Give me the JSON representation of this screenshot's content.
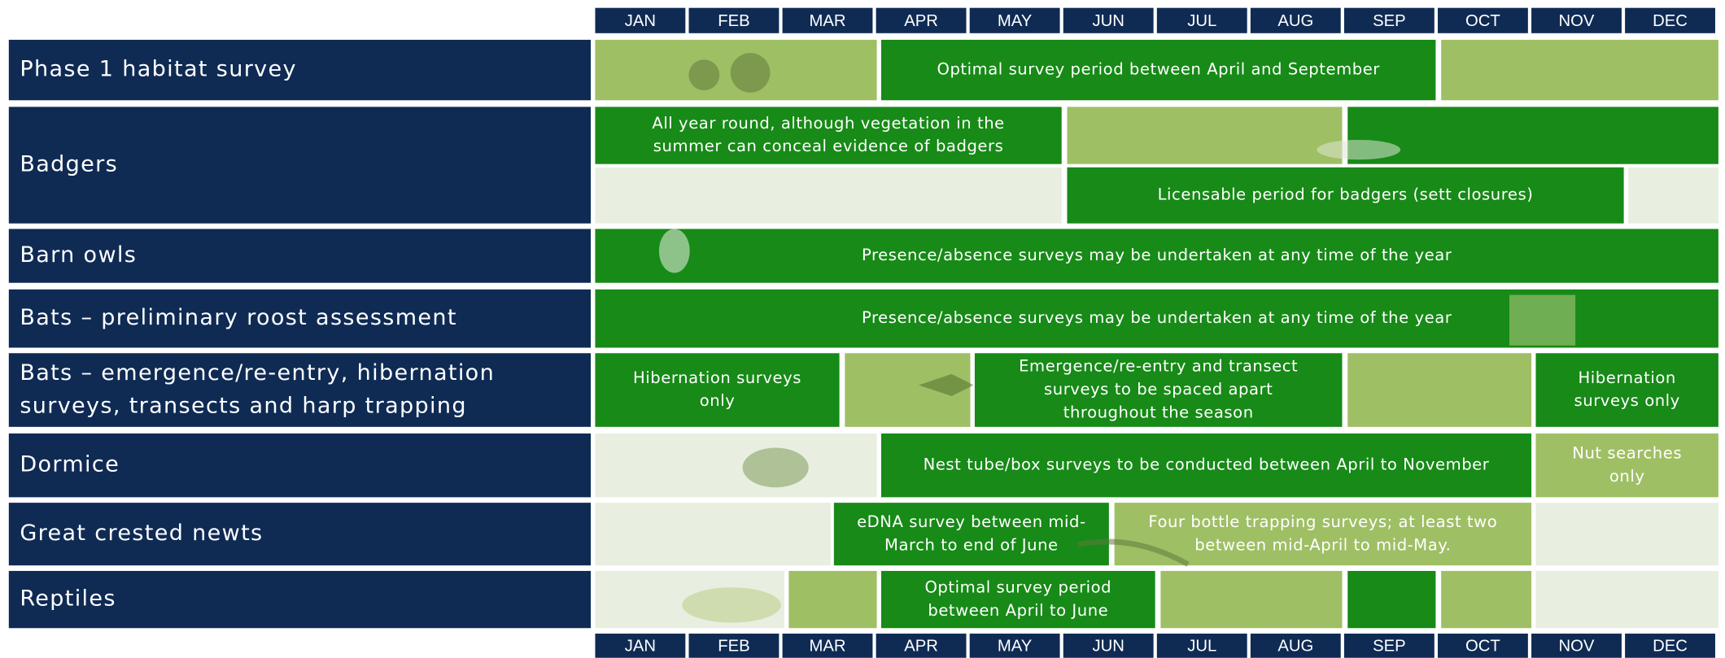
{
  "months": [
    "JAN",
    "FEB",
    "MAR",
    "APR",
    "MAY",
    "JUN",
    "JUL",
    "AUG",
    "SEP",
    "OCT",
    "NOV",
    "DEC"
  ],
  "rows": [
    {
      "label": [
        "Phase 1 habitat survey"
      ],
      "notes": [
        [
          "Optimal survey period between April and September"
        ]
      ]
    },
    {
      "label": [
        "Badgers"
      ],
      "notes": [
        [
          "All year round, although vegetation in the",
          "summer can conceal evidence of badgers"
        ],
        [
          "Licensable period for badgers (sett closures)"
        ]
      ]
    },
    {
      "label": [
        "Barn owls"
      ],
      "notes": [
        [
          "Presence/absence surveys may be undertaken at any time of the year"
        ]
      ]
    },
    {
      "label": [
        "Bats – preliminary roost assessment"
      ],
      "notes": [
        [
          "Presence/absence surveys may be undertaken at any time of the year"
        ]
      ]
    },
    {
      "label": [
        "Bats – emergence/re-entry, hibernation",
        "surveys, transects and harp trapping"
      ],
      "notes": [
        [
          "Hibernation surveys",
          "only"
        ],
        [
          "Emergence/re-entry and transect",
          "surveys to be spaced apart",
          "throughout the season"
        ],
        [
          "Hibernation",
          "surveys only"
        ]
      ]
    },
    {
      "label": [
        "Dormice"
      ],
      "notes": [
        [
          "Nest tube/box surveys to be conducted between April to November"
        ],
        [
          "Nut searches",
          "only"
        ]
      ]
    },
    {
      "label": [
        "Great crested newts"
      ],
      "notes": [
        [
          "eDNA survey between mid-",
          "March to end of June"
        ],
        [
          "Four bottle trapping surveys; at least two",
          "between mid-April to mid-May."
        ]
      ]
    },
    {
      "label": [
        "Reptiles"
      ],
      "notes": [
        [
          "Optimal survey period",
          "between April to June"
        ]
      ]
    }
  ]
}
